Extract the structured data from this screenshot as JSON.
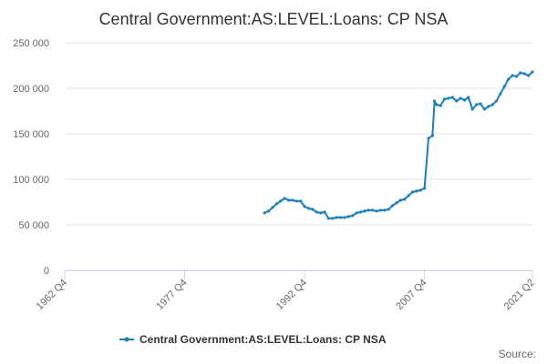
{
  "chart_data": {
    "type": "line",
    "title": "Central Government:AS:LEVEL:Loans: CP NSA",
    "xlabel": "",
    "ylabel": "",
    "ylim": [
      0,
      250000
    ],
    "grid": true,
    "legend_placement": "bottom",
    "y_ticks": [
      "0",
      "50 000",
      "100 000",
      "150 000",
      "200 000",
      "250 000"
    ],
    "x_tick_labels": [
      "1962 Q4",
      "1977 Q4",
      "1992 Q4",
      "2007 Q4",
      "2021 Q2"
    ],
    "series": [
      {
        "name": "Central Government:AS:LEVEL:Loans: CP NSA",
        "color": "#1d7fbb",
        "x": [
          "1987 Q4",
          "1988 Q2",
          "1988 Q4",
          "1989 Q2",
          "1989 Q4",
          "1990 Q2",
          "1990 Q4",
          "1991 Q2",
          "1991 Q4",
          "1992 Q2",
          "1992 Q4",
          "1993 Q2",
          "1993 Q4",
          "1994 Q2",
          "1994 Q4",
          "1995 Q2",
          "1995 Q4",
          "1996 Q2",
          "1996 Q4",
          "1997 Q2",
          "1997 Q4",
          "1998 Q2",
          "1998 Q4",
          "1999 Q2",
          "1999 Q4",
          "2000 Q2",
          "2000 Q4",
          "2001 Q2",
          "2001 Q4",
          "2002 Q2",
          "2002 Q4",
          "2003 Q2",
          "2003 Q4",
          "2004 Q2",
          "2004 Q4",
          "2005 Q2",
          "2005 Q4",
          "2006 Q2",
          "2006 Q4",
          "2007 Q2",
          "2007 Q4",
          "2008 Q2",
          "2008 Q4",
          "2009 Q1",
          "2009 Q2",
          "2009 Q4",
          "2010 Q2",
          "2010 Q4",
          "2011 Q2",
          "2011 Q4",
          "2012 Q2",
          "2012 Q4",
          "2013 Q2",
          "2013 Q4",
          "2014 Q2",
          "2014 Q4",
          "2015 Q2",
          "2015 Q4",
          "2016 Q2",
          "2016 Q4",
          "2017 Q2",
          "2017 Q4",
          "2018 Q2",
          "2018 Q4",
          "2019 Q2",
          "2019 Q4",
          "2020 Q2",
          "2020 Q4",
          "2021 Q2"
        ],
        "values": [
          63000,
          65000,
          69000,
          73000,
          76000,
          79000,
          77000,
          77000,
          76000,
          76000,
          70000,
          68000,
          67000,
          64000,
          63000,
          64000,
          57000,
          57000,
          58000,
          58000,
          58000,
          59000,
          60000,
          63000,
          64000,
          65000,
          66000,
          66000,
          65000,
          66000,
          66000,
          67000,
          71000,
          74000,
          77000,
          78000,
          82000,
          86000,
          87000,
          88000,
          90000,
          145000,
          148000,
          186000,
          182000,
          181000,
          188000,
          189000,
          190000,
          186000,
          189000,
          187000,
          190000,
          177000,
          182000,
          183000,
          177000,
          180000,
          182000,
          186000,
          194000,
          202000,
          210000,
          214000,
          213000,
          217000,
          216000,
          214000,
          218000
        ]
      }
    ]
  },
  "source_label": "Source:"
}
